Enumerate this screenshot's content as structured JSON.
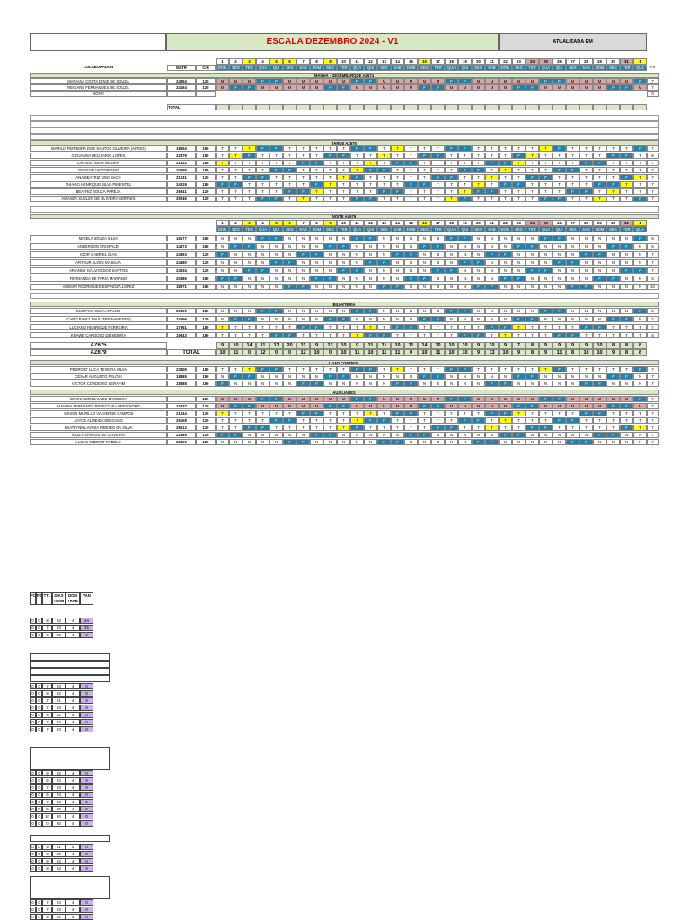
{
  "header": {
    "title": "ESCALA DEZEMBRO 2024 - V1",
    "updated_label": "ATUALIZADA EM",
    "colaborador_label": "COLABORADOR",
    "matr_label": "MATR",
    "ch_label": "C/H",
    "fs_label": "FS"
  },
  "days": [
    "1",
    "2",
    "3",
    "4",
    "5",
    "6",
    "7",
    "8",
    "9",
    "10",
    "11",
    "12",
    "13",
    "14",
    "15",
    "16",
    "17",
    "18",
    "19",
    "20",
    "21",
    "22",
    "23",
    "24",
    "25",
    "26",
    "27",
    "28",
    "29",
    "30",
    "31",
    "1"
  ],
  "weekdays": [
    "DOM",
    "SEG",
    "TER",
    "QUA",
    "QUI",
    "SEX",
    "SAB",
    "DOM",
    "SEG",
    "TER",
    "QUA",
    "QUI",
    "SEX",
    "SAB",
    "DOM",
    "SEG",
    "TER",
    "QUA",
    "QUI",
    "SEX",
    "SAB",
    "DOM",
    "SEG",
    "TER",
    "QUA",
    "QUI",
    "SEX",
    "SAB",
    "DOM",
    "SEG",
    "TER",
    "QUA"
  ],
  "sections": {
    "manha": "MANHÃ - DESEMBARQUE AZ674",
    "tarde": "TARDE AZ675",
    "noite": "NOITE AZ679",
    "bilheteria": "BILHETERIA",
    "load_control": "LOAD CONTROL",
    "auxiliares": "AUXILIARES"
  },
  "manha_rows": [
    {
      "name": "MARIANA COSTA DINIZ DE SOUZA",
      "matr": "24354",
      "ch": "120",
      "fs": "7"
    },
    {
      "name": "REGIANE FERNANDES DE SOUZA",
      "matr": "24164",
      "ch": "120",
      "fs": "7"
    },
    {
      "name": "NOVO",
      "matr": "",
      "ch": "",
      "fs": "0"
    }
  ],
  "total_label": "TOTAL",
  "tarde_rows": [
    {
      "name": "MARILIA FERREIRA DOS SANTOS OLIVEIRA (APOIO)",
      "matr": "18854",
      "ch": "180",
      "fs": "7"
    },
    {
      "name": "GIOVANNA BELISARIO LOPES",
      "matr": "22479",
      "ch": "180",
      "fs": "8"
    },
    {
      "name": "LARISSA SILVA MOURA",
      "matr": "21922",
      "ch": "180",
      "fs": "7"
    },
    {
      "name": "GERSON VICTORIANO",
      "matr": "20595",
      "ch": "180",
      "fs": "7"
    },
    {
      "name": "ANA BEATRIZ UNO BACH",
      "matr": "21231",
      "ch": "120",
      "fs": "7"
    },
    {
      "name": "THIAGO HENRIQUE SILVA PIMENTEL",
      "matr": "24029",
      "ch": "180",
      "fs": "7"
    },
    {
      "name": "BEATRIZ SOUZA PAREJA",
      "matr": "26841",
      "ch": "120",
      "fs": "7"
    },
    {
      "name": "AMANDA SUELEN DE OLIVEIRA MORAES",
      "matr": "29046",
      "ch": "120",
      "fs": "7"
    }
  ],
  "noite_rows": [
    {
      "name": "MIRELA SOUZA SILVA",
      "matr": "19177",
      "ch": "180",
      "fs": "8"
    },
    {
      "name": "ANDERSON CRISPALDI",
      "matr": "14473",
      "ch": "180",
      "fs": "6"
    },
    {
      "name": "IGOR GABRIEL DIAS",
      "matr": "24393",
      "ch": "120",
      "fs": "7"
    },
    {
      "name": "ARTHUR ALVES DA SILVA",
      "matr": "24580",
      "ch": "120",
      "fs": "7"
    },
    {
      "name": "ARIANNY GALVAO DOS SANTOS",
      "matr": "23334",
      "ch": "120",
      "fs": "7"
    },
    {
      "name": "FERNANDA DE FARIA MARIANO",
      "matr": "20586",
      "ch": "180",
      "fs": "5"
    },
    {
      "name": "ADEMIR RODRIGUES ESPINOZA LOPEZ",
      "matr": "18571",
      "ch": "180",
      "fs": "10"
    }
  ],
  "bilheteria_rows": [
    {
      "name": "GUSTAVO SILVA ARAUJO",
      "matr": "20300",
      "ch": "180",
      "fs": "8"
    },
    {
      "name": "ICARO BANCI DIAS (TREINAMENTO)",
      "matr": "24556",
      "ch": "120",
      "fs": "7"
    },
    {
      "name": "LUCIANO HENRIQUE FERREIRA",
      "matr": "17961",
      "ch": "180",
      "fs": "7"
    },
    {
      "name": "KNAWE CARDOSO DE MOURA",
      "matr": "19843",
      "ch": "180",
      "fs": "6"
    }
  ],
  "totals": {
    "az675_label": "AZ675",
    "az679_label": "AZ679",
    "total_label": "TOTAL",
    "az675": [
      "9",
      "10",
      "14",
      "11",
      "13",
      "20",
      "11",
      "9",
      "13",
      "10",
      "9",
      "11",
      "11",
      "10",
      "11",
      "14",
      "10",
      "10",
      "10",
      "9",
      "10",
      "9",
      "7",
      "8",
      "9",
      "9",
      "9",
      "9",
      "10",
      "8",
      "8",
      "8"
    ],
    "az679": [
      "10",
      "11",
      "0",
      "12",
      "0",
      "0",
      "12",
      "10",
      "0",
      "10",
      "11",
      "10",
      "11",
      "11",
      "0",
      "10",
      "11",
      "10",
      "10",
      "9",
      "13",
      "10",
      "9",
      "8",
      "9",
      "11",
      "8",
      "10",
      "10",
      "9",
      "8",
      "8"
    ]
  },
  "load_rows": [
    {
      "name": "PEDRO D' LUCA TEXEIRA SILVA",
      "matr": "23409",
      "ch": "180",
      "fs": "7"
    },
    {
      "name": "CÉSAR AUGUSTO PELOSI",
      "matr": "18885",
      "ch": "180",
      "fs": "7"
    },
    {
      "name": "VICTOR CORDEIRO SERAFIM",
      "matr": "18888",
      "ch": "180",
      "fs": "7"
    }
  ],
  "aux_rows": [
    {
      "name": "BRUNA GONCALVES BARBOSA",
      "matr": "",
      "ch": "120",
      "fs": "7"
    },
    {
      "name": "JANAINA FERNANDA REBECCHI LOPES NORO",
      "matr": "24337",
      "ch": "120",
      "fs": "7"
    },
    {
      "name": "YVISON MURILLO VALVERDE CAMPOS",
      "matr": "21244",
      "ch": "120",
      "fs": "7"
    },
    {
      "name": "JOYCE ALMEIDA DELGADO",
      "matr": "25158",
      "ch": "120",
      "fs": "7"
    },
    {
      "name": "KEATLYNN LAVINIA RIBEIRO DA SILVA",
      "matr": "26812",
      "ch": "120",
      "fs": "7"
    },
    {
      "name": "KELLY SANTOS DE OLIVEIRA",
      "matr": "22589",
      "ch": "120",
      "fs": "7"
    },
    {
      "name": "LUCAS RIBEIRO RABELO",
      "matr": "23360",
      "ch": "120",
      "fs": "7"
    }
  ],
  "summary": {
    "headers": [
      "FC",
      "FD",
      "TTL",
      "DIAS TRAB",
      "DOM TRAB",
      "VAN"
    ],
    "group1": [
      [
        "0",
        "0",
        "8",
        "22",
        "4",
        "24"
      ],
      [
        "0",
        "0",
        "7",
        "23",
        "4",
        "25"
      ],
      [
        "0",
        "0",
        "0",
        "30",
        "4",
        "0"
      ]
    ],
    "group2": [
      [
        "0",
        "0",
        "7",
        "23",
        "4",
        "0"
      ],
      [
        "0",
        "0",
        "8",
        "22",
        "4",
        "0"
      ],
      [
        "0",
        "0",
        "7",
        "21",
        "4",
        "0"
      ],
      [
        "0",
        "0",
        "7",
        "23",
        "4",
        "0"
      ],
      [
        "0",
        "0",
        "8",
        "22",
        "4",
        "0"
      ],
      [
        "0",
        "0",
        "7",
        "23",
        "4",
        "0"
      ],
      [
        "0",
        "0",
        "7",
        "23",
        "4",
        "0"
      ]
    ],
    "group3": [
      [
        "0",
        "0",
        "8",
        "22",
        "4",
        "0"
      ],
      [
        "0",
        "0",
        "6",
        "24",
        "4",
        "0"
      ],
      [
        "0",
        "0",
        "7",
        "23",
        "4",
        "0"
      ],
      [
        "0",
        "0",
        "6",
        "24",
        "4",
        "0"
      ],
      [
        "0",
        "0",
        "7",
        "23",
        "4",
        "0"
      ],
      [
        "0",
        "0",
        "5",
        "25",
        "4",
        "0"
      ],
      [
        "0",
        "0",
        "10",
        "20",
        "4",
        "0"
      ],
      [
        "0",
        "0",
        "0",
        "30",
        "4",
        "0"
      ]
    ],
    "group4": [
      [
        "0",
        "0",
        "9",
        "21",
        "4",
        "0"
      ],
      [
        "0",
        "0",
        "8",
        "22",
        "4",
        "0"
      ],
      [
        "0",
        "0",
        "8",
        "22",
        "4",
        "0"
      ],
      [
        "0",
        "0",
        "8",
        "22",
        "4",
        "0"
      ]
    ],
    "group5": [
      [
        "0",
        "0",
        "7",
        "23",
        "4",
        "0"
      ],
      [
        "0",
        "0",
        "7",
        "23",
        "4",
        "0"
      ],
      [
        "0",
        "0",
        "8",
        "22",
        "4",
        "0"
      ]
    ]
  },
  "colors": {
    "manha": "#dba3a3",
    "folga": "#2a7fa8",
    "destaque": "#ffff00",
    "section_bg": "#d9e8c4",
    "van": "#c9b3ea"
  }
}
